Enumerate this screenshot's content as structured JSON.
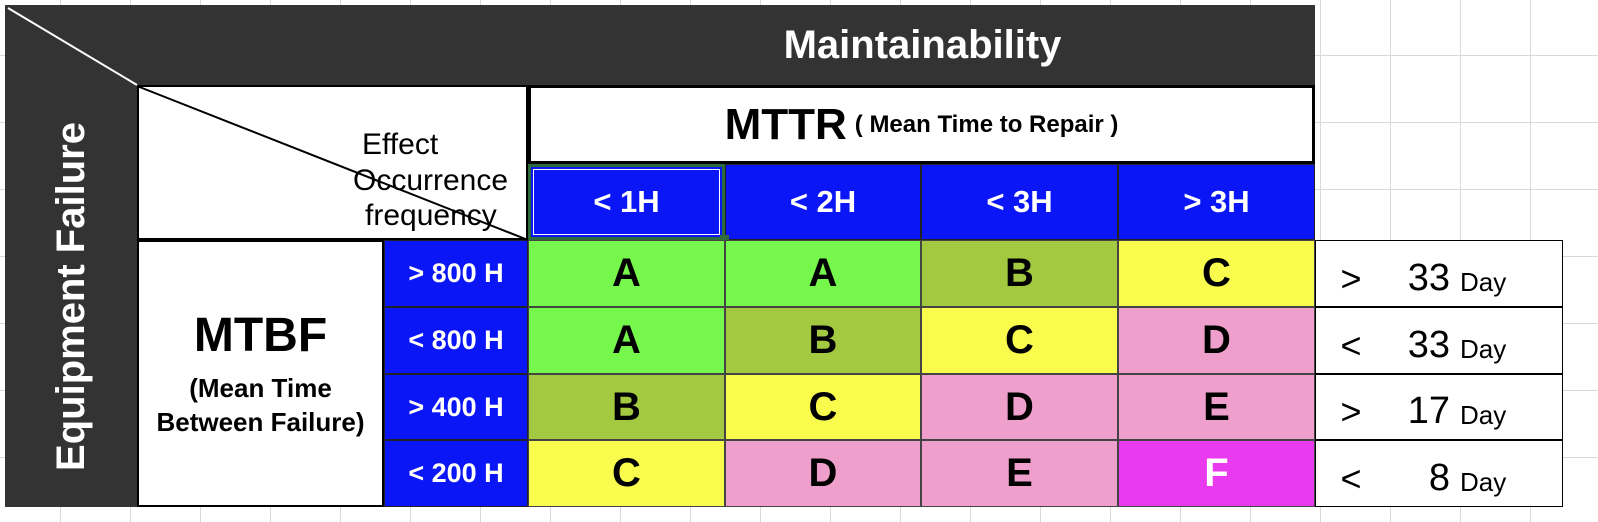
{
  "title": "Maintainability",
  "side_title": "Equipment Failure",
  "mttr": {
    "label": "MTTR",
    "subtitle": "( Mean Time to Repair )"
  },
  "effect_labels": [
    "Effect",
    "Occurrence",
    "frequency"
  ],
  "mttr_columns": [
    "< 1H",
    "< 2H",
    "< 3H",
    "> 3H"
  ],
  "mtbf": {
    "label": "MTBF",
    "sub1": "(Mean Time",
    "sub2": "Between Failure)"
  },
  "mtbf_rows": [
    "> 800 H",
    "< 800 H",
    "> 400 H",
    "< 200 H"
  ],
  "grid": [
    [
      "A",
      "A",
      "B",
      "C"
    ],
    [
      "A",
      "B",
      "C",
      "D"
    ],
    [
      "B",
      "C",
      "D",
      "E"
    ],
    [
      "C",
      "D",
      "E",
      "F"
    ]
  ],
  "grade_colors": {
    "A": "#76f74b",
    "B": "#a2c93f",
    "C": "#fafc4d",
    "D": "#ef9fcb",
    "E": "#ef9fcb",
    "F": "#e93af0"
  },
  "grade_text_colors": {
    "F": "#ffffff"
  },
  "side_values": [
    {
      "op": ">",
      "num": "33",
      "unit": "Day"
    },
    {
      "op": "<",
      "num": "33",
      "unit": "Day"
    },
    {
      "op": ">",
      "num": "17",
      "unit": "Day"
    },
    {
      "op": "<",
      "num": "8",
      "unit": "Day"
    }
  ]
}
